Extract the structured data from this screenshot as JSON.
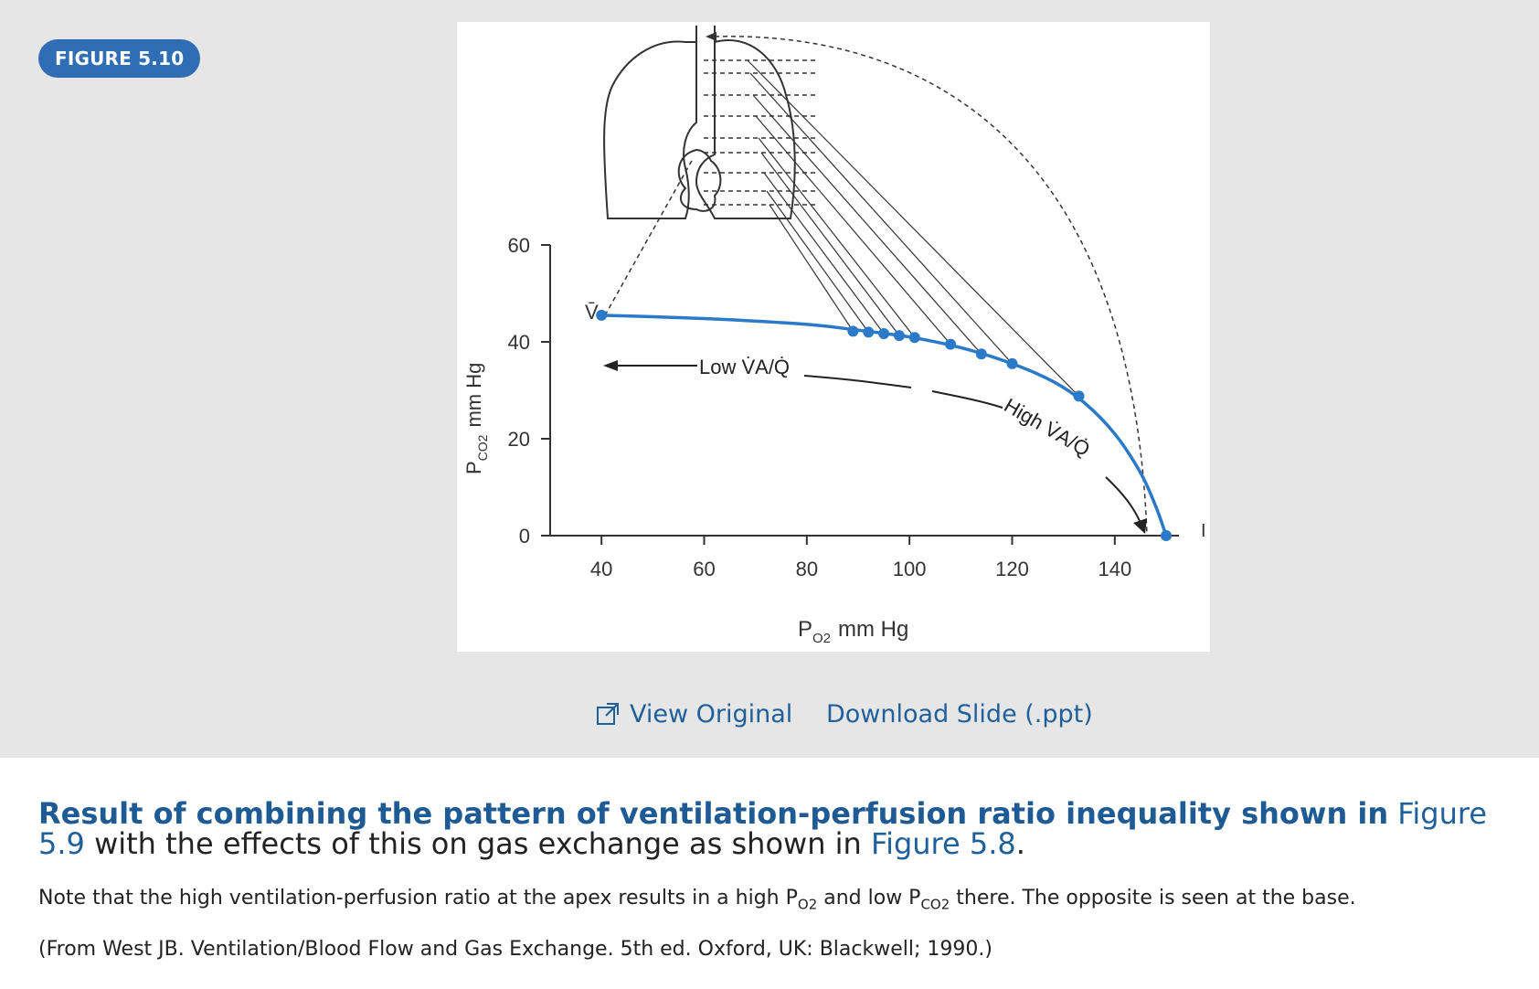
{
  "figure": {
    "badge": "FIGURE 5.10",
    "actions": {
      "view_original": "View Original",
      "download_slide": "Download Slide (.ppt)"
    }
  },
  "chart_data": {
    "type": "line",
    "title": "",
    "xlabel_main": "P",
    "xlabel_sub": "O2",
    "xlabel_unit": "mm Hg",
    "ylabel_main": "P",
    "ylabel_sub": "CO2",
    "ylabel_unit": "mm Hg",
    "xlim": [
      30,
      150
    ],
    "ylim": [
      0,
      60
    ],
    "x_ticks": [
      40,
      60,
      80,
      100,
      120,
      140
    ],
    "y_ticks": [
      0,
      20,
      40,
      60
    ],
    "series": [
      {
        "color": "#2a7ac9",
        "curve": [
          [
            40,
            45.5
          ],
          [
            60,
            44.8
          ],
          [
            80,
            43.6
          ],
          [
            90,
            42.4
          ],
          [
            100,
            41.0
          ],
          [
            110,
            38.8
          ],
          [
            120,
            35.5
          ],
          [
            128,
            31.8
          ],
          [
            134,
            27.5
          ],
          [
            140,
            21.0
          ],
          [
            145,
            13.0
          ],
          [
            148,
            6.0
          ],
          [
            150,
            0
          ]
        ],
        "points": [
          [
            40,
            45.5
          ],
          [
            89,
            42.2
          ],
          [
            92,
            42.0
          ],
          [
            95,
            41.7
          ],
          [
            98,
            41.3
          ],
          [
            101,
            40.9
          ],
          [
            108,
            39.5
          ],
          [
            114,
            37.5
          ],
          [
            120,
            35.5
          ],
          [
            133,
            28.8
          ],
          [
            150,
            0
          ]
        ]
      }
    ],
    "annotations": {
      "venous_label": "V̄",
      "inspired_label": "I",
      "low_label": "Low V̇A/Q̇",
      "high_label": "High V̇A/Q̇"
    },
    "colors": {
      "curve": "#2a7ac9",
      "axis": "#333333"
    }
  },
  "caption": {
    "title_bold": "Result of combining the pattern of ventilation-perfusion ratio inequality shown in",
    "link_1": "Figure 5.9",
    "middle": "with the effects of this on gas exchange as shown in",
    "link_2": "Figure 5.8",
    "end": ".",
    "note_1": "Note that the high ventilation-perfusion ratio at the apex results in a high P",
    "note_sub_1": "O2",
    "note_2": " and low P",
    "note_sub_2": "CO2",
    "note_3": " there. The opposite is seen at the base.",
    "source": "(From West JB. Ventilation/Blood Flow and Gas Exchange. 5th ed. Oxford, UK: Blackwell; 1990.)"
  }
}
